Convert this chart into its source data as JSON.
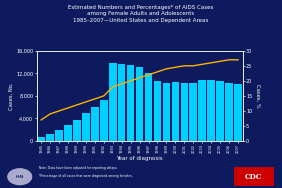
{
  "title_line1": "Estimated Numbers and Percentages* of AIDS Cases",
  "title_line2": "among Female Adults and Adolescents",
  "title_line3": "1985–2007—United States and Dependent Areas",
  "xlabel": "Year of diagnosis",
  "ylabel_left": "Cases, No.",
  "ylabel_right": "Cases, %",
  "years": [
    1985,
    1986,
    1987,
    1988,
    1989,
    1990,
    1991,
    1992,
    1993,
    1994,
    1995,
    1996,
    1997,
    1998,
    1999,
    2000,
    2001,
    2002,
    2003,
    2004,
    2005,
    2006,
    2007
  ],
  "bar_values": [
    700,
    1300,
    2000,
    2900,
    3800,
    4900,
    6000,
    7200,
    13800,
    13600,
    13500,
    13200,
    12000,
    10600,
    10300,
    10500,
    10300,
    10300,
    10900,
    10800,
    10600,
    10300,
    10100
  ],
  "line_values": [
    7,
    9,
    10,
    11,
    12,
    13,
    14,
    15,
    18,
    19,
    20,
    21,
    22,
    23,
    24,
    24.5,
    25,
    25,
    25.5,
    26,
    26.5,
    27,
    27
  ],
  "bar_color": "#00CFFF",
  "line_color": "#FFB300",
  "background_color": "#0D1B5E",
  "text_color": "#FFFFFF",
  "ylim_left": [
    0,
    16000
  ],
  "ylim_right": [
    0,
    30
  ],
  "yticks_left": [
    0,
    4000,
    8000,
    12000,
    16000
  ],
  "yticks_right": [
    0,
    5,
    10,
    15,
    20,
    25,
    30
  ],
  "note1": "Note: Data have been adjusted for reporting delays.",
  "note2": "*Percentage of all cases that were diagnosed among females."
}
